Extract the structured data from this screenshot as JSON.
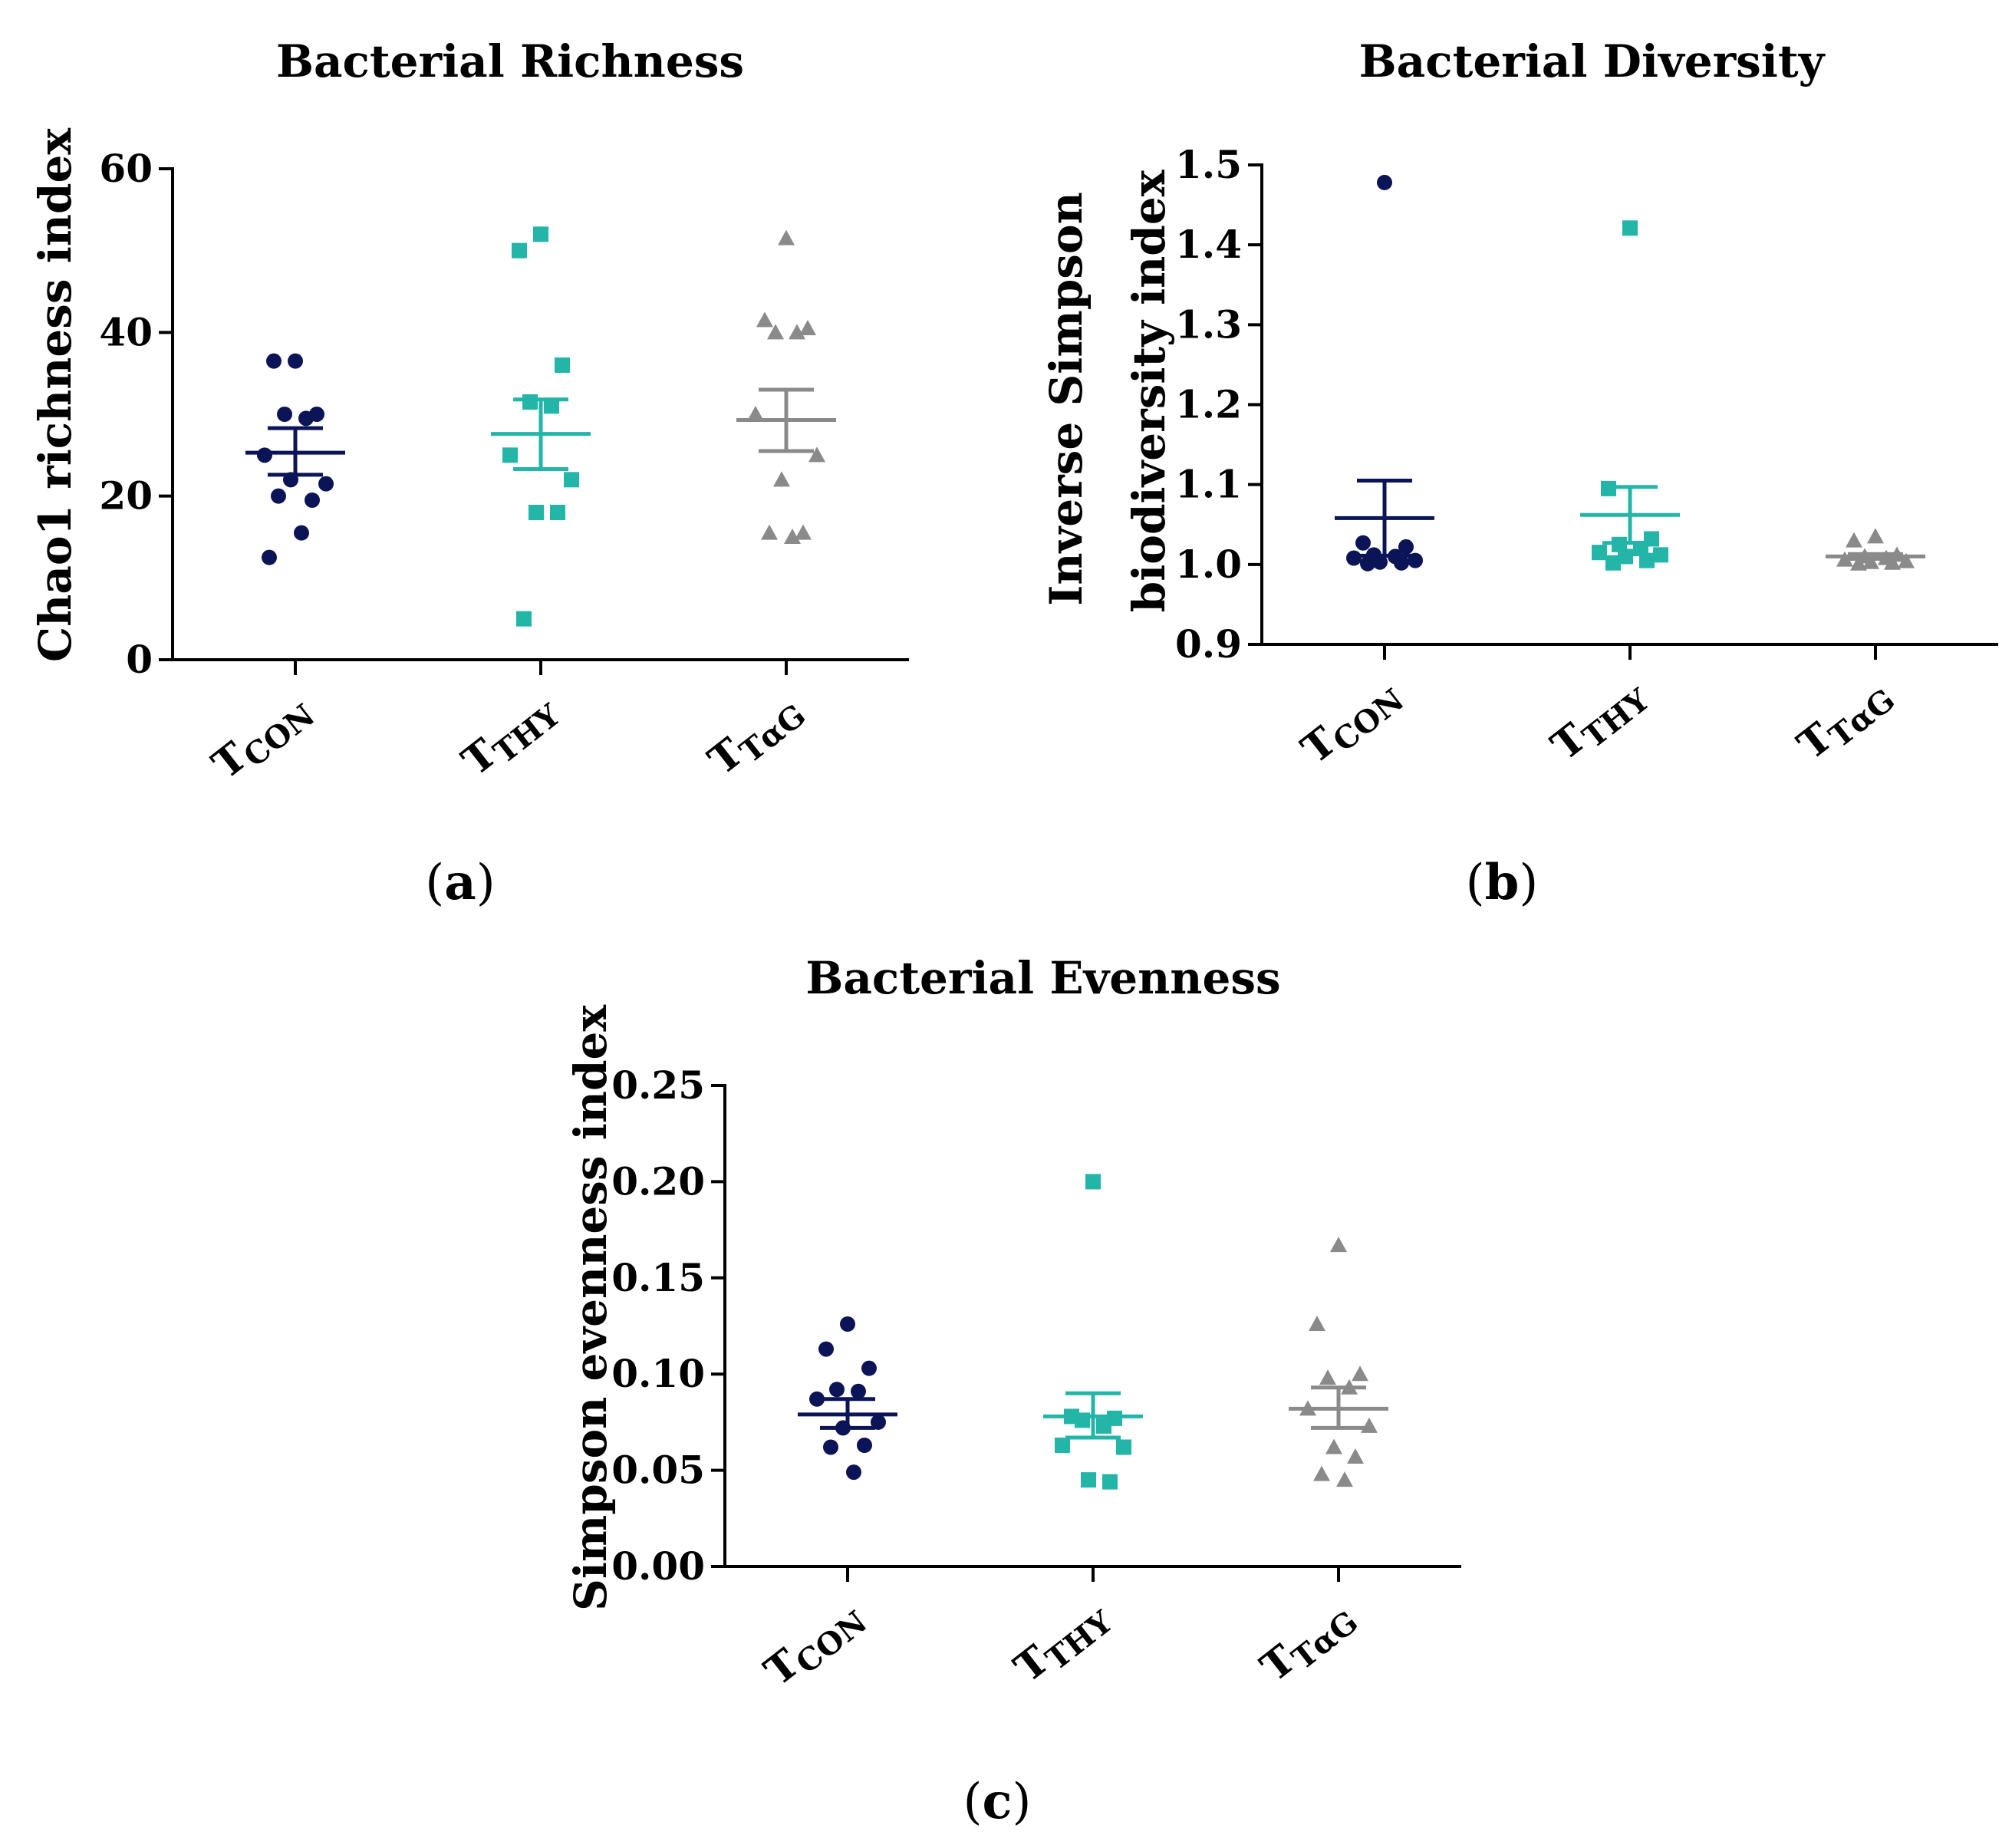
{
  "chart_data": [
    {
      "panel_label": "(a)",
      "panel_letter": "a",
      "type": "scatter",
      "title": "Bacterial Richness",
      "ylabel": "Chao1 richness index",
      "ylim": [
        0,
        60
      ],
      "yticks": [
        "0",
        "20",
        "40",
        "60"
      ],
      "ytick_values": [
        0,
        20,
        40,
        60
      ],
      "categories": [
        {
          "label": "T",
          "sub": "CON"
        },
        {
          "label": "T",
          "sub": "THY"
        },
        {
          "label": "T",
          "sub": "TαG"
        }
      ],
      "series": [
        {
          "name": "TCON",
          "marker": "circle",
          "color": "#0b1457",
          "points": [
            36.5,
            36.5,
            30.0,
            30.0,
            29.5,
            25.0,
            21.5,
            22.0,
            19.5,
            20.0,
            15.5,
            12.5
          ],
          "mean": 25.3,
          "sem_upper": 28.3,
          "sem_lower": 22.6
        },
        {
          "name": "TTHY",
          "marker": "square",
          "color": "#22b5a8",
          "points": [
            52.0,
            50.0,
            36.0,
            31.5,
            31.0,
            25.0,
            22.0,
            18.0,
            18.0,
            5.0
          ],
          "mean": 27.6,
          "sem_upper": 31.8,
          "sem_lower": 23.3
        },
        {
          "name": "TTαG",
          "marker": "triangle",
          "color": "#8a8a8a",
          "points": [
            51.5,
            41.5,
            40.5,
            40.0,
            40.0,
            30.0,
            25.0,
            22.0,
            15.5,
            15.5,
            15.0
          ],
          "mean": 29.3,
          "sem_upper": 33.0,
          "sem_lower": 25.5
        }
      ]
    },
    {
      "panel_label": "(b)",
      "panel_letter": "b",
      "type": "scatter",
      "title": "Bacterial Diversity",
      "ylabel": "Inverse Simpson",
      "ylabel2": "biodiversity index",
      "ylim": [
        0.9,
        1.5
      ],
      "yticks": [
        "0.9",
        "1.0",
        "1.1",
        "1.2",
        "1.3",
        "1.4",
        "1.5"
      ],
      "ytick_values": [
        0.9,
        1.0,
        1.1,
        1.2,
        1.3,
        1.4,
        1.5
      ],
      "categories": [
        {
          "label": "T",
          "sub": "CON"
        },
        {
          "label": "T",
          "sub": "THY"
        },
        {
          "label": "T",
          "sub": "TαG"
        }
      ],
      "series": [
        {
          "name": "TCON",
          "marker": "circle",
          "color": "#0b1457",
          "points": [
            1.478,
            1.027,
            1.022,
            1.012,
            1.01,
            1.008,
            1.005,
            1.003,
            1.002,
            1.001
          ],
          "mean": 1.058,
          "sem_upper": 1.105,
          "sem_lower": 1.011
        },
        {
          "name": "TTHY",
          "marker": "square",
          "color": "#22b5a8",
          "points": [
            1.421,
            1.095,
            1.032,
            1.025,
            1.02,
            1.015,
            1.012,
            1.01,
            1.005,
            1.002
          ],
          "mean": 1.062,
          "sem_upper": 1.097,
          "sem_lower": 1.027
        },
        {
          "name": "TTαG",
          "marker": "triangle",
          "color": "#8a8a8a",
          "points": [
            1.035,
            1.03,
            1.012,
            1.01,
            1.008,
            1.006,
            1.004,
            1.003,
            1.002,
            1.001
          ],
          "mean": 1.01,
          "sem_upper": 1.013,
          "sem_lower": 1.007
        }
      ]
    },
    {
      "panel_label": "(c)",
      "panel_letter": "c",
      "type": "scatter",
      "title": "Bacterial Evenness",
      "ylabel": "Simpson evenness index",
      "ylim": [
        0.0,
        0.25
      ],
      "yticks": [
        "0.00",
        "0.05",
        "0.10",
        "0.15",
        "0.20",
        "0.25"
      ],
      "ytick_values": [
        0.0,
        0.05,
        0.1,
        0.15,
        0.2,
        0.25
      ],
      "categories": [
        {
          "label": "T",
          "sub": "CON"
        },
        {
          "label": "T",
          "sub": "THY"
        },
        {
          "label": "T",
          "sub": "TαG"
        }
      ],
      "series": [
        {
          "name": "TCON",
          "marker": "circle",
          "color": "#0b1457",
          "points": [
            0.126,
            0.113,
            0.103,
            0.092,
            0.091,
            0.087,
            0.075,
            0.072,
            0.063,
            0.062,
            0.049
          ],
          "mean": 0.079,
          "sem_upper": 0.087,
          "sem_lower": 0.072
        },
        {
          "name": "TTHY",
          "marker": "square",
          "color": "#22b5a8",
          "points": [
            0.2,
            0.078,
            0.077,
            0.076,
            0.073,
            0.063,
            0.062,
            0.045,
            0.044
          ],
          "mean": 0.078,
          "sem_upper": 0.09,
          "sem_lower": 0.067
        },
        {
          "name": "TTαG",
          "marker": "triangle",
          "color": "#8a8a8a",
          "points": [
            0.167,
            0.126,
            0.1,
            0.098,
            0.093,
            0.082,
            0.073,
            0.062,
            0.057,
            0.048,
            0.045
          ],
          "mean": 0.082,
          "sem_upper": 0.093,
          "sem_lower": 0.072
        }
      ]
    }
  ]
}
